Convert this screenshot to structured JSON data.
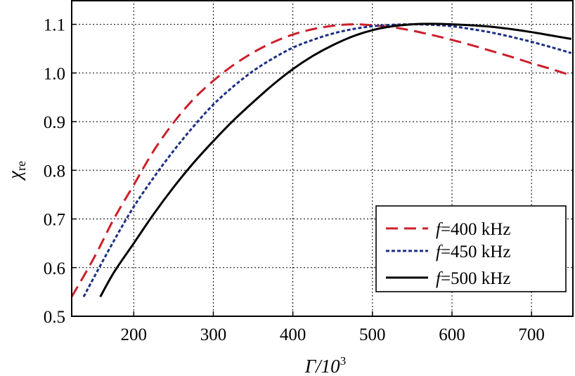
{
  "chart_data": {
    "type": "line",
    "xlabel": "Γ/10",
    "xlabel_sup": "3",
    "ylabel": "χ",
    "ylabel_sub": "re",
    "xlim": [
      122,
      752
    ],
    "ylim": [
      0.5,
      1.15
    ],
    "x_ticks": [
      200,
      300,
      400,
      500,
      600,
      700
    ],
    "y_ticks": [
      0.5,
      0.6,
      0.7,
      0.8,
      0.9,
      1.0,
      1.1
    ],
    "y_tick_labels": [
      "0.5",
      "0.6",
      "0.7",
      "0.8",
      "0.9",
      "1.0",
      "1.1"
    ],
    "grid": true,
    "legend_position": "bottom-right",
    "series": [
      {
        "name_prefix": "f",
        "name": "=400 kHz",
        "color": "#cc1f2a",
        "style": "dashed",
        "x": [
          122,
          150,
          175,
          200,
          225,
          250,
          275,
          300,
          325,
          350,
          375,
          400,
          425,
          450,
          475,
          500,
          525,
          550,
          575,
          600,
          625,
          650,
          675,
          700,
          725,
          750
        ],
        "y": [
          0.54,
          0.62,
          0.7,
          0.77,
          0.84,
          0.898,
          0.946,
          0.984,
          1.016,
          1.042,
          1.063,
          1.079,
          1.09,
          1.097,
          1.1,
          1.098,
          1.094,
          1.087,
          1.078,
          1.068,
          1.057,
          1.045,
          1.033,
          1.02,
          1.008,
          0.995
        ]
      },
      {
        "name_prefix": "f",
        "name": "=450 kHz",
        "color": "#1c2f85",
        "style": "dotted",
        "x": [
          137,
          150,
          175,
          200,
          225,
          250,
          275,
          300,
          325,
          350,
          375,
          400,
          425,
          450,
          475,
          500,
          525,
          550,
          575,
          600,
          625,
          650,
          675,
          700,
          725,
          750
        ],
        "y": [
          0.54,
          0.58,
          0.655,
          0.725,
          0.785,
          0.84,
          0.89,
          0.935,
          0.972,
          1.004,
          1.03,
          1.052,
          1.068,
          1.081,
          1.09,
          1.096,
          1.099,
          1.1,
          1.099,
          1.096,
          1.09,
          1.083,
          1.074,
          1.064,
          1.053,
          1.041
        ]
      },
      {
        "name_prefix": "f",
        "name": "=500 kHz",
        "color": "#000000",
        "style": "solid",
        "x": [
          158,
          175,
          200,
          225,
          250,
          275,
          300,
          325,
          350,
          375,
          400,
          425,
          450,
          475,
          500,
          525,
          550,
          575,
          600,
          625,
          650,
          675,
          700,
          725,
          750
        ],
        "y": [
          0.54,
          0.59,
          0.65,
          0.71,
          0.765,
          0.815,
          0.86,
          0.902,
          0.94,
          0.976,
          1.008,
          1.035,
          1.057,
          1.075,
          1.088,
          1.096,
          1.1,
          1.101,
          1.1,
          1.098,
          1.095,
          1.09,
          1.084,
          1.077,
          1.07
        ]
      }
    ]
  }
}
